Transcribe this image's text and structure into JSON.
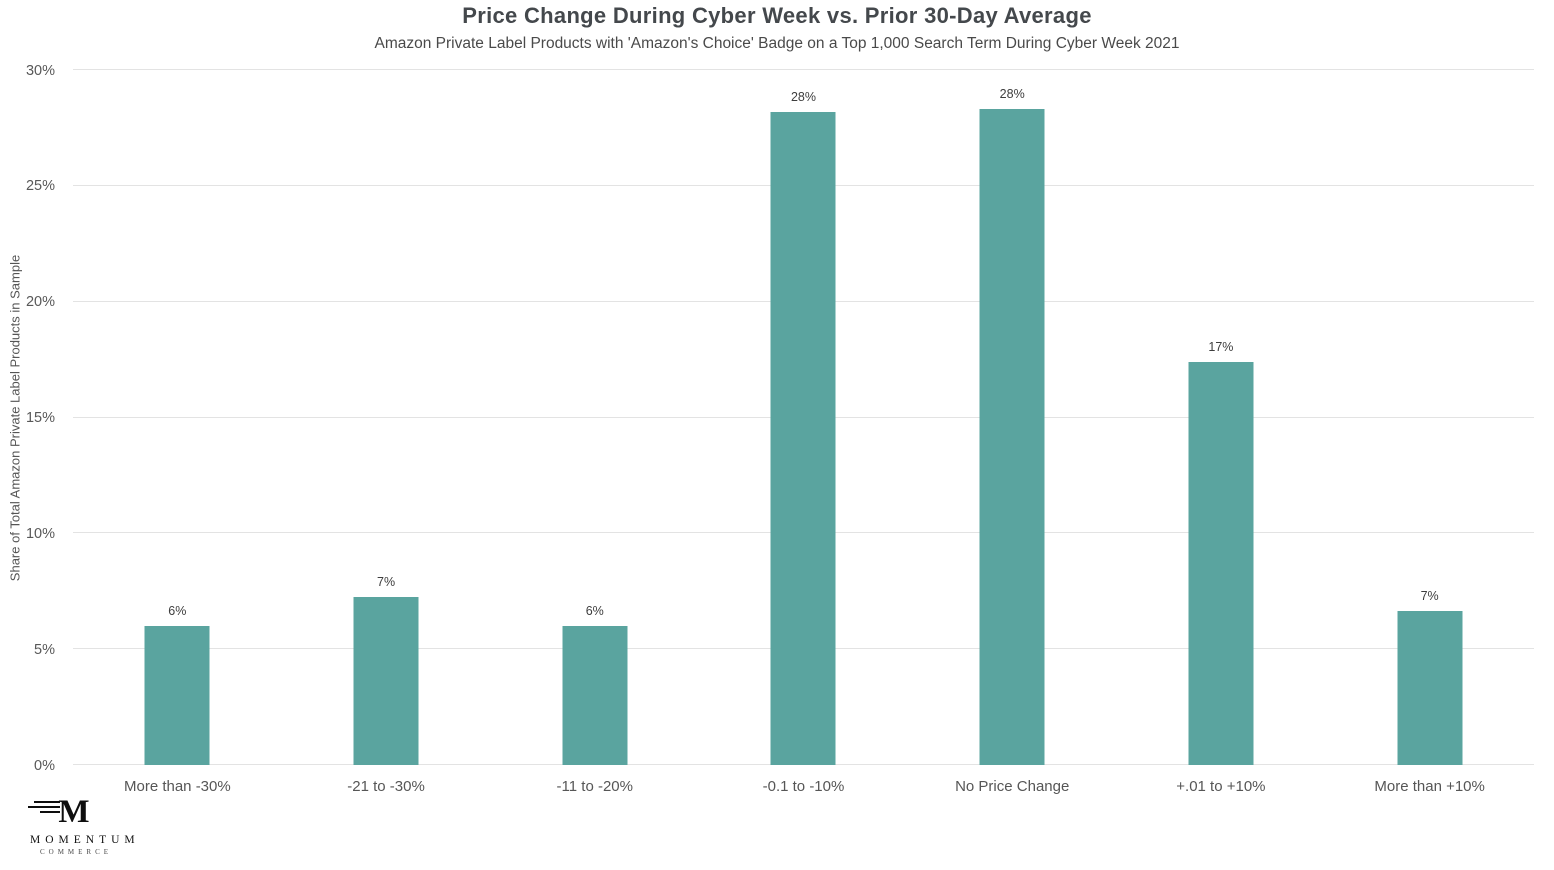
{
  "header": {
    "title": "Price Change During Cyber Week vs. Prior 30-Day Average",
    "subtitle": "Amazon Private Label Products with 'Amazon's Choice' Badge on a Top 1,000 Search Term During Cyber Week 2021"
  },
  "chart_data": {
    "type": "bar",
    "title": "Price Change During Cyber Week vs. Prior 30-Day Average",
    "subtitle": "Amazon Private Label Products with 'Amazon's Choice' Badge on a Top 1,000 Search Term During Cyber Week 2021",
    "categories": [
      "More than -30%",
      "-21 to -30%",
      "-11 to -20%",
      "-0.1 to -10%",
      "No Price Change",
      "+.01 to +10%",
      "More than +10%"
    ],
    "values": [
      6,
      7,
      6,
      28,
      28,
      17,
      7
    ],
    "value_labels": [
      "6%",
      "7%",
      "6%",
      "28%",
      "28%",
      "17%",
      "7%"
    ],
    "render_values": [
      6.0,
      7.25,
      6.0,
      28.2,
      28.3,
      17.4,
      6.65
    ],
    "xlabel": "",
    "ylabel": "Share of Total Amazon Private Label Products in Sample",
    "ylim": [
      0,
      30
    ],
    "yticks": [
      0,
      5,
      10,
      15,
      20,
      25,
      30
    ],
    "ytick_labels": [
      "0%",
      "5%",
      "10%",
      "15%",
      "20%",
      "25%",
      "30%"
    ],
    "grid": true,
    "legend": "none",
    "bar_color": "#5aa49f",
    "gridline_color": "#e3e3e3"
  },
  "logo": {
    "monogram": "M",
    "name": "MOMENTUM",
    "tagline": "COMMERCE"
  }
}
